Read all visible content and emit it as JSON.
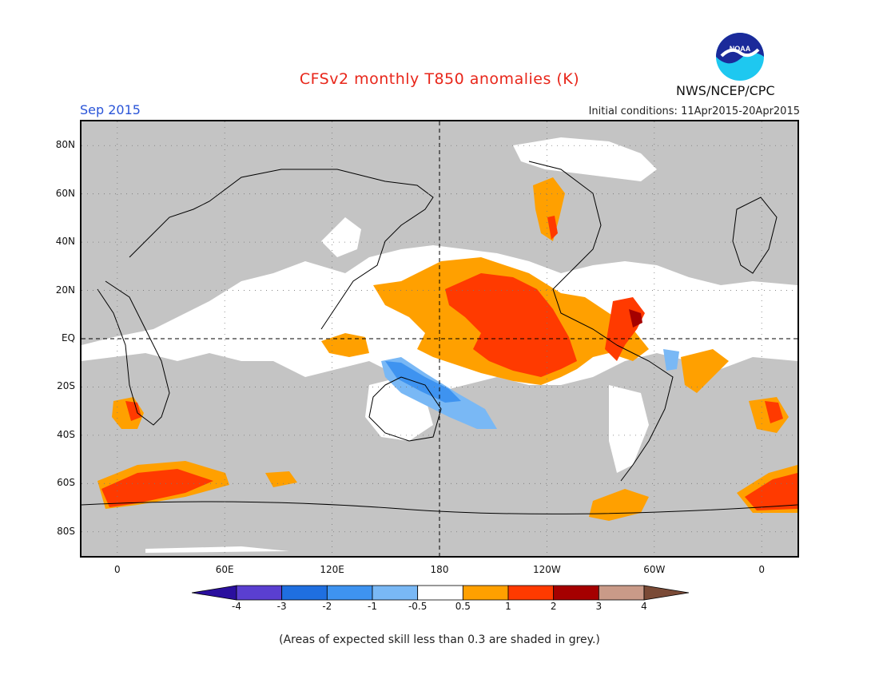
{
  "title": "CFSv2 monthly T850 anomalies (K)",
  "valid_month": "Sep 2015",
  "initial_conditions": "Initial conditions: 11Apr2015-20Apr2015",
  "agency": "NWS/NCEP/CPC",
  "logo_text": "NOAA",
  "footnote": "(Areas of expected skill less than 0.3 are shaded in grey.)",
  "map": {
    "lon_range": [
      -20,
      380
    ],
    "lat_range": [
      -90,
      90
    ],
    "lat_ticks": [
      {
        "lat": 80,
        "label": "80N"
      },
      {
        "lat": 60,
        "label": "60N"
      },
      {
        "lat": 40,
        "label": "40N"
      },
      {
        "lat": 20,
        "label": "20N"
      },
      {
        "lat": 0,
        "label": "EQ"
      },
      {
        "lat": -20,
        "label": "20S"
      },
      {
        "lat": -40,
        "label": "40S"
      },
      {
        "lat": -60,
        "label": "60S"
      },
      {
        "lat": -80,
        "label": "80S"
      }
    ],
    "lon_ticks": [
      {
        "lon": 0,
        "label": "0"
      },
      {
        "lon": 60,
        "label": "60E"
      },
      {
        "lon": 120,
        "label": "120E"
      },
      {
        "lon": 180,
        "label": "180"
      },
      {
        "lon": 240,
        "label": "120W"
      },
      {
        "lon": 300,
        "label": "60W"
      },
      {
        "lon": 360,
        "label": "0"
      }
    ]
  },
  "colorbar": {
    "labels": [
      "-4",
      "-3",
      "-2",
      "-1",
      "-0.5",
      "0.5",
      "1",
      "2",
      "3",
      "4"
    ],
    "colors": [
      "#2a0f9e",
      "#5a3fd0",
      "#1f6fe0",
      "#3e93f0",
      "#79b8f5",
      "#ffffff",
      "#ffa000",
      "#ff3a00",
      "#a50000",
      "#c99a88",
      "#7a4a36"
    ]
  },
  "colors": {
    "grey_skill": "#c4c4c4",
    "title": "#e8261a",
    "month": "#2a55d8"
  }
}
